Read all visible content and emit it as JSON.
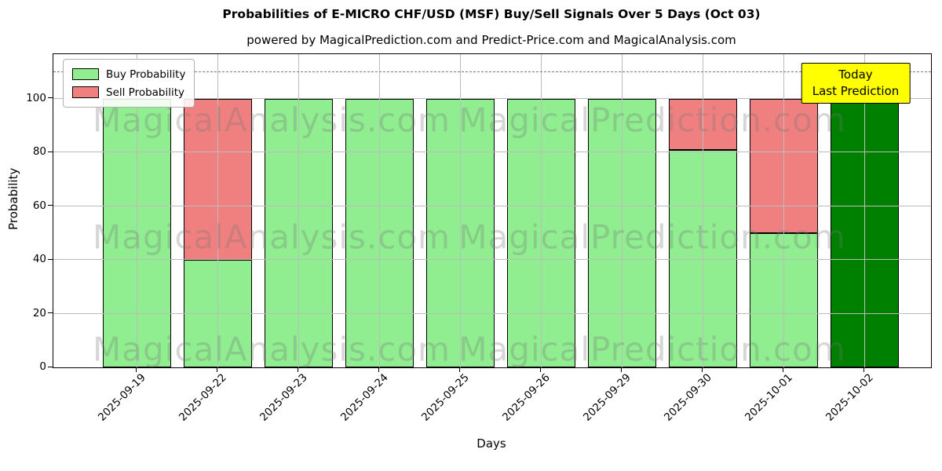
{
  "chart_data": {
    "type": "bar",
    "stacked": true,
    "title": "Probabilities of E-MICRO CHF/USD (MSF) Buy/Sell Signals Over 5 Days (Oct 03)",
    "subtitle": "powered by MagicalPrediction.com and Predict-Price.com and MagicalAnalysis.com",
    "xlabel": "Days",
    "ylabel": "Probability",
    "categories": [
      "2025-09-19",
      "2025-09-22",
      "2025-09-23",
      "2025-09-24",
      "2025-09-25",
      "2025-09-26",
      "2025-09-29",
      "2025-09-30",
      "2025-10-01",
      "2025-10-02"
    ],
    "series": [
      {
        "name": "Buy Probability",
        "color": "#90EE90",
        "values": [
          100,
          40,
          100,
          100,
          100,
          100,
          100,
          81,
          50,
          100
        ]
      },
      {
        "name": "Sell Probability",
        "color": "#F08080",
        "values": [
          0,
          60,
          0,
          0,
          0,
          0,
          0,
          19,
          50,
          0
        ]
      }
    ],
    "today_bar": {
      "category": "2025-10-02",
      "index": 9,
      "color": "#008000"
    },
    "ylim": [
      0,
      116.6
    ],
    "yticks": [
      0,
      20,
      40,
      60,
      80,
      100
    ],
    "grid": true,
    "bar_edge_color": "#000000",
    "hline": {
      "y": 110,
      "style": "dashed",
      "color": "#7a7a7a"
    },
    "legend_position": "upper left"
  },
  "legend": {
    "items": [
      {
        "label": "Buy Probability",
        "color": "#90EE90"
      },
      {
        "label": "Sell Probability",
        "color": "#F08080"
      }
    ]
  },
  "annotation": {
    "lines": [
      "Today",
      "Last Prediction"
    ],
    "bg_color": "#FFFF00",
    "border_color": "#000000"
  },
  "watermarks": {
    "texts": [
      "MagicalAnalysis.com",
      "MagicalPrediction.com"
    ]
  }
}
